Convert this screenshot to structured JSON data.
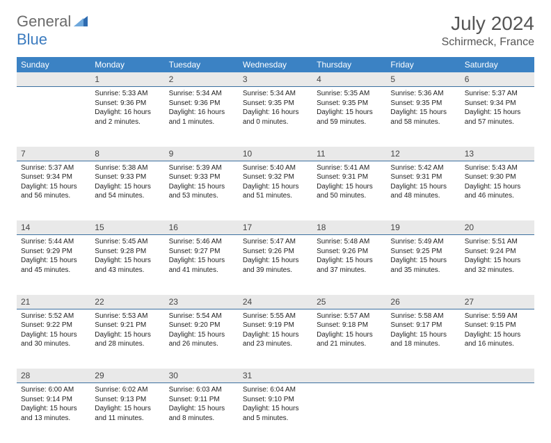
{
  "brand": {
    "general": "General",
    "blue": "Blue"
  },
  "title": "July 2024",
  "location": "Schirmeck, France",
  "colors": {
    "header_bg": "#3b82c4",
    "header_text": "#ffffff",
    "daynum_bg": "#e9e9e9",
    "daynum_border": "#3b6fa0",
    "brand_gray": "#6b6b6b",
    "brand_blue": "#3b7bbf"
  },
  "weekdays": [
    "Sunday",
    "Monday",
    "Tuesday",
    "Wednesday",
    "Thursday",
    "Friday",
    "Saturday"
  ],
  "weeks": [
    {
      "nums": [
        "",
        "1",
        "2",
        "3",
        "4",
        "5",
        "6"
      ],
      "cells": [
        null,
        {
          "sunrise": "Sunrise: 5:33 AM",
          "sunset": "Sunset: 9:36 PM",
          "daylight": "Daylight: 16 hours and 2 minutes."
        },
        {
          "sunrise": "Sunrise: 5:34 AM",
          "sunset": "Sunset: 9:36 PM",
          "daylight": "Daylight: 16 hours and 1 minutes."
        },
        {
          "sunrise": "Sunrise: 5:34 AM",
          "sunset": "Sunset: 9:35 PM",
          "daylight": "Daylight: 16 hours and 0 minutes."
        },
        {
          "sunrise": "Sunrise: 5:35 AM",
          "sunset": "Sunset: 9:35 PM",
          "daylight": "Daylight: 15 hours and 59 minutes."
        },
        {
          "sunrise": "Sunrise: 5:36 AM",
          "sunset": "Sunset: 9:35 PM",
          "daylight": "Daylight: 15 hours and 58 minutes."
        },
        {
          "sunrise": "Sunrise: 5:37 AM",
          "sunset": "Sunset: 9:34 PM",
          "daylight": "Daylight: 15 hours and 57 minutes."
        }
      ]
    },
    {
      "nums": [
        "7",
        "8",
        "9",
        "10",
        "11",
        "12",
        "13"
      ],
      "cells": [
        {
          "sunrise": "Sunrise: 5:37 AM",
          "sunset": "Sunset: 9:34 PM",
          "daylight": "Daylight: 15 hours and 56 minutes."
        },
        {
          "sunrise": "Sunrise: 5:38 AM",
          "sunset": "Sunset: 9:33 PM",
          "daylight": "Daylight: 15 hours and 54 minutes."
        },
        {
          "sunrise": "Sunrise: 5:39 AM",
          "sunset": "Sunset: 9:33 PM",
          "daylight": "Daylight: 15 hours and 53 minutes."
        },
        {
          "sunrise": "Sunrise: 5:40 AM",
          "sunset": "Sunset: 9:32 PM",
          "daylight": "Daylight: 15 hours and 51 minutes."
        },
        {
          "sunrise": "Sunrise: 5:41 AM",
          "sunset": "Sunset: 9:31 PM",
          "daylight": "Daylight: 15 hours and 50 minutes."
        },
        {
          "sunrise": "Sunrise: 5:42 AM",
          "sunset": "Sunset: 9:31 PM",
          "daylight": "Daylight: 15 hours and 48 minutes."
        },
        {
          "sunrise": "Sunrise: 5:43 AM",
          "sunset": "Sunset: 9:30 PM",
          "daylight": "Daylight: 15 hours and 46 minutes."
        }
      ]
    },
    {
      "nums": [
        "14",
        "15",
        "16",
        "17",
        "18",
        "19",
        "20"
      ],
      "cells": [
        {
          "sunrise": "Sunrise: 5:44 AM",
          "sunset": "Sunset: 9:29 PM",
          "daylight": "Daylight: 15 hours and 45 minutes."
        },
        {
          "sunrise": "Sunrise: 5:45 AM",
          "sunset": "Sunset: 9:28 PM",
          "daylight": "Daylight: 15 hours and 43 minutes."
        },
        {
          "sunrise": "Sunrise: 5:46 AM",
          "sunset": "Sunset: 9:27 PM",
          "daylight": "Daylight: 15 hours and 41 minutes."
        },
        {
          "sunrise": "Sunrise: 5:47 AM",
          "sunset": "Sunset: 9:26 PM",
          "daylight": "Daylight: 15 hours and 39 minutes."
        },
        {
          "sunrise": "Sunrise: 5:48 AM",
          "sunset": "Sunset: 9:26 PM",
          "daylight": "Daylight: 15 hours and 37 minutes."
        },
        {
          "sunrise": "Sunrise: 5:49 AM",
          "sunset": "Sunset: 9:25 PM",
          "daylight": "Daylight: 15 hours and 35 minutes."
        },
        {
          "sunrise": "Sunrise: 5:51 AM",
          "sunset": "Sunset: 9:24 PM",
          "daylight": "Daylight: 15 hours and 32 minutes."
        }
      ]
    },
    {
      "nums": [
        "21",
        "22",
        "23",
        "24",
        "25",
        "26",
        "27"
      ],
      "cells": [
        {
          "sunrise": "Sunrise: 5:52 AM",
          "sunset": "Sunset: 9:22 PM",
          "daylight": "Daylight: 15 hours and 30 minutes."
        },
        {
          "sunrise": "Sunrise: 5:53 AM",
          "sunset": "Sunset: 9:21 PM",
          "daylight": "Daylight: 15 hours and 28 minutes."
        },
        {
          "sunrise": "Sunrise: 5:54 AM",
          "sunset": "Sunset: 9:20 PM",
          "daylight": "Daylight: 15 hours and 26 minutes."
        },
        {
          "sunrise": "Sunrise: 5:55 AM",
          "sunset": "Sunset: 9:19 PM",
          "daylight": "Daylight: 15 hours and 23 minutes."
        },
        {
          "sunrise": "Sunrise: 5:57 AM",
          "sunset": "Sunset: 9:18 PM",
          "daylight": "Daylight: 15 hours and 21 minutes."
        },
        {
          "sunrise": "Sunrise: 5:58 AM",
          "sunset": "Sunset: 9:17 PM",
          "daylight": "Daylight: 15 hours and 18 minutes."
        },
        {
          "sunrise": "Sunrise: 5:59 AM",
          "sunset": "Sunset: 9:15 PM",
          "daylight": "Daylight: 15 hours and 16 minutes."
        }
      ]
    },
    {
      "nums": [
        "28",
        "29",
        "30",
        "31",
        "",
        "",
        ""
      ],
      "cells": [
        {
          "sunrise": "Sunrise: 6:00 AM",
          "sunset": "Sunset: 9:14 PM",
          "daylight": "Daylight: 15 hours and 13 minutes."
        },
        {
          "sunrise": "Sunrise: 6:02 AM",
          "sunset": "Sunset: 9:13 PM",
          "daylight": "Daylight: 15 hours and 11 minutes."
        },
        {
          "sunrise": "Sunrise: 6:03 AM",
          "sunset": "Sunset: 9:11 PM",
          "daylight": "Daylight: 15 hours and 8 minutes."
        },
        {
          "sunrise": "Sunrise: 6:04 AM",
          "sunset": "Sunset: 9:10 PM",
          "daylight": "Daylight: 15 hours and 5 minutes."
        },
        null,
        null,
        null
      ]
    }
  ]
}
